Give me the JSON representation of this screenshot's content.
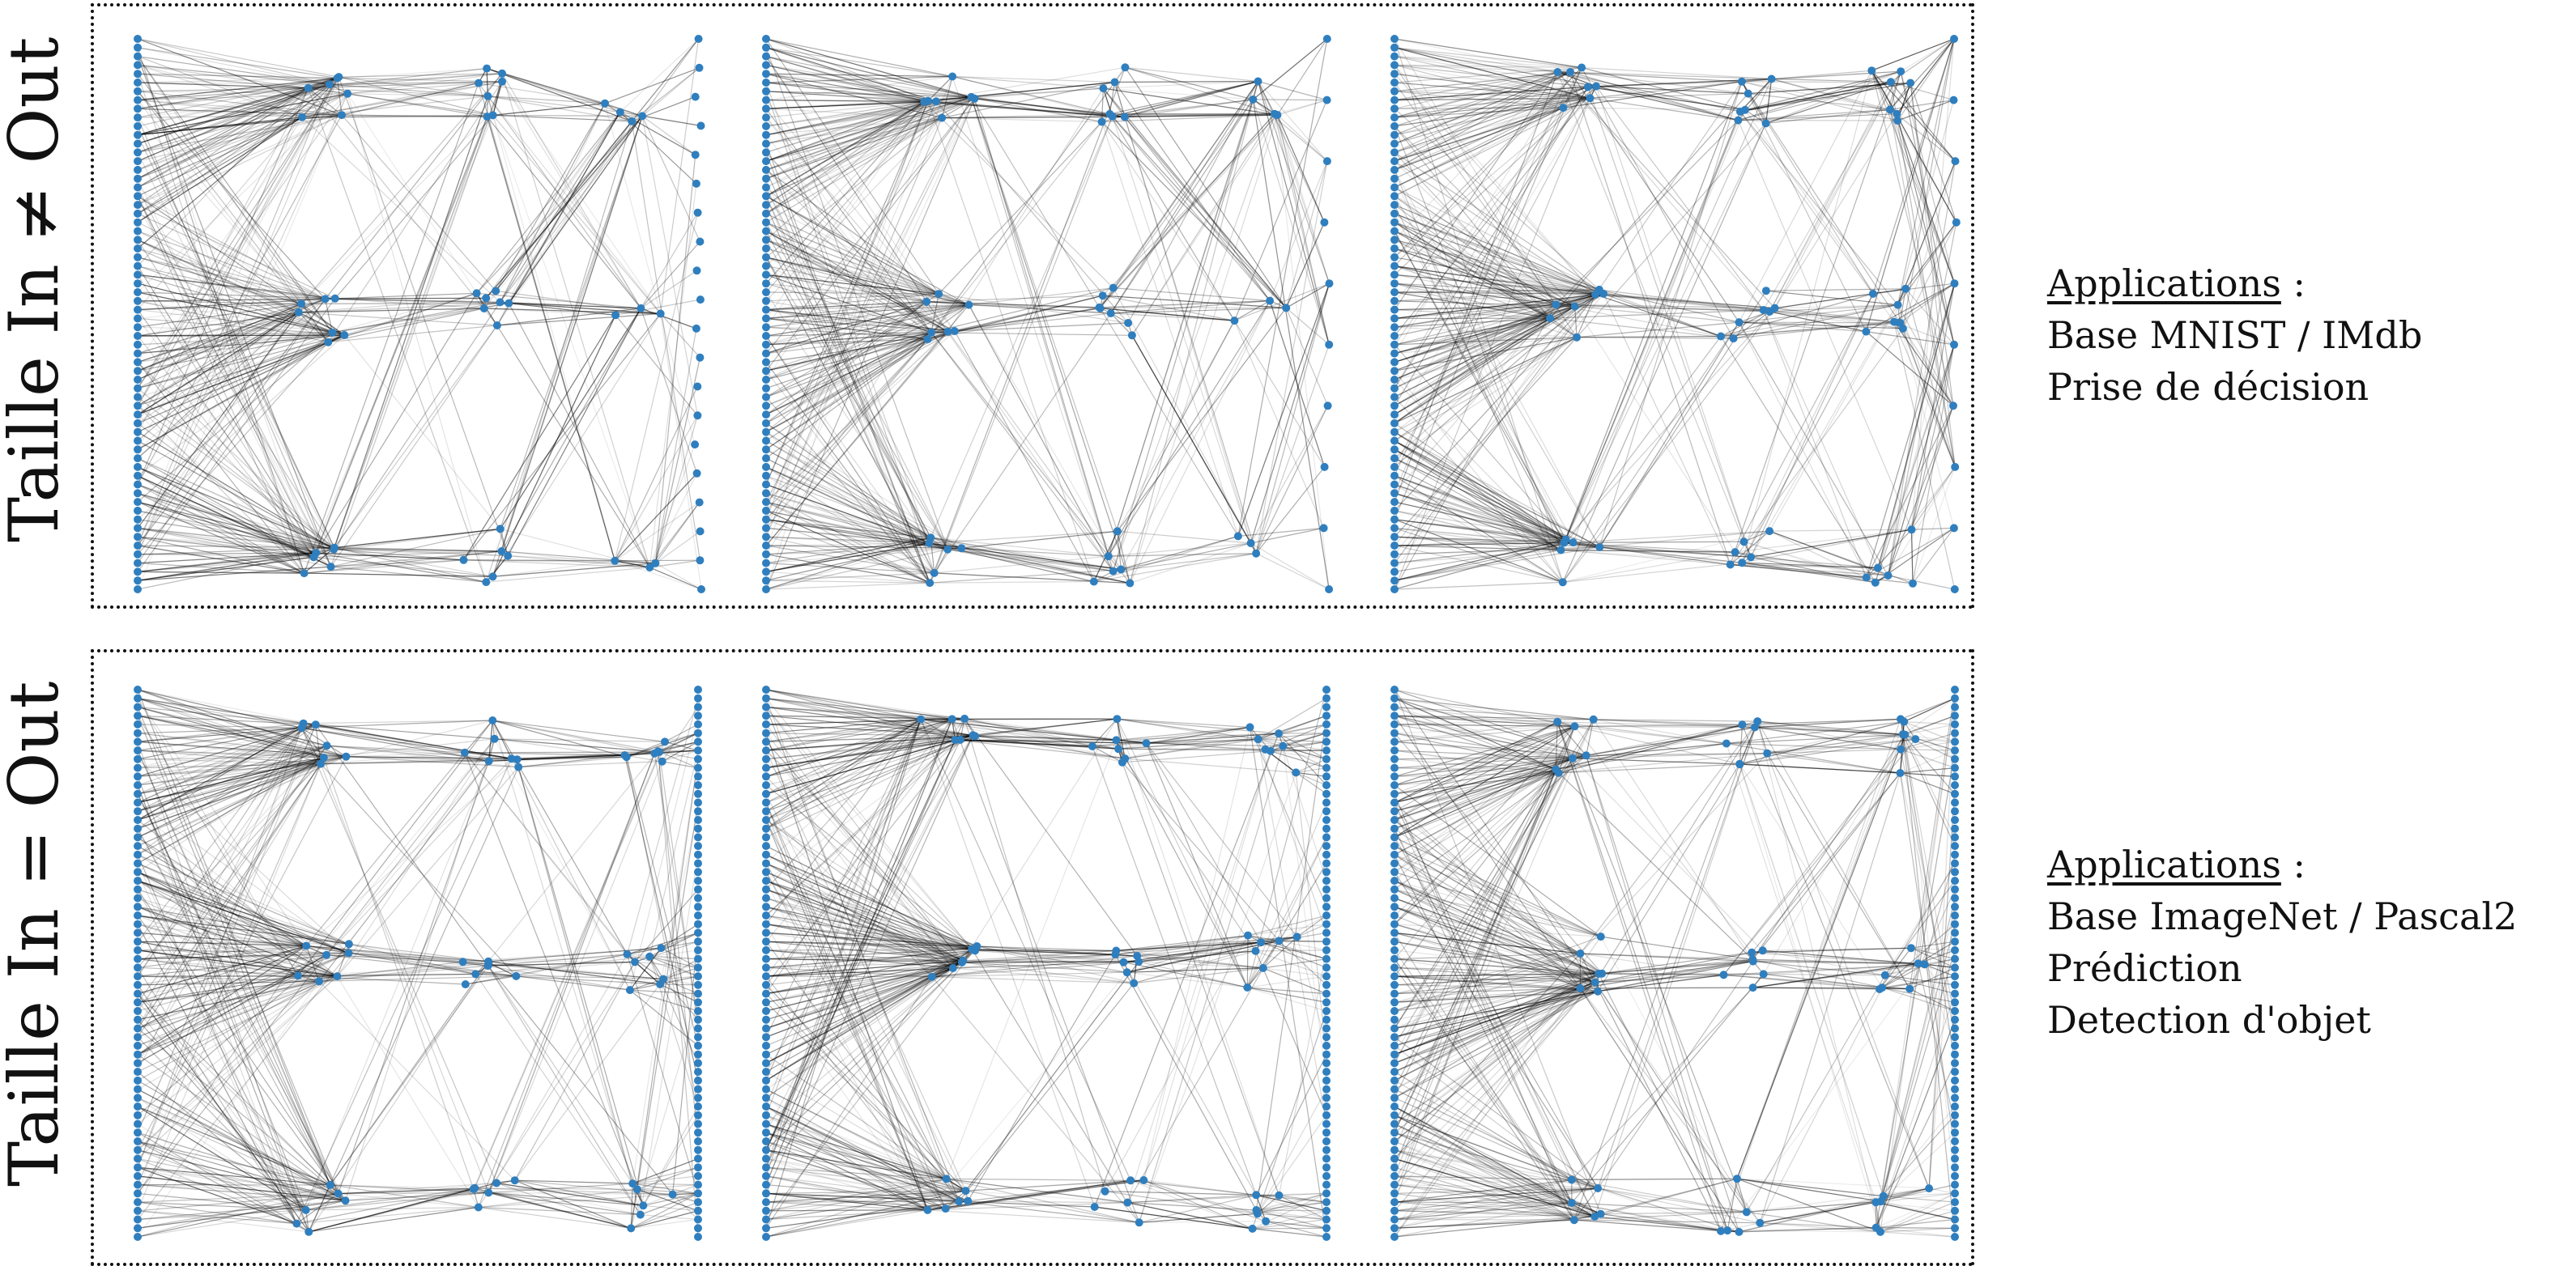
{
  "rows": [
    {
      "label": "Taille In ≠ Out",
      "applications_heading": "Applications",
      "applications_colon": " :",
      "applications": [
        "Base MNIST / IMdb",
        "Prise de décision"
      ],
      "networks": [
        {
          "layers": [
            64,
            20,
            20,
            10,
            20
          ],
          "equal_io": false
        },
        {
          "layers": [
            64,
            20,
            20,
            10,
            10
          ],
          "equal_io": false
        },
        {
          "layers": [
            64,
            20,
            20,
            20,
            10
          ],
          "equal_io": false
        }
      ]
    },
    {
      "label": "Taille In = Out",
      "applications_heading": "Applications",
      "applications_colon": " :",
      "applications": [
        "Base ImageNet / Pascal2",
        "Prédiction",
        "Detection d'objet"
      ],
      "networks": [
        {
          "layers": [
            64,
            20,
            20,
            20,
            64
          ],
          "equal_io": true
        },
        {
          "layers": [
            64,
            20,
            20,
            20,
            64
          ],
          "equal_io": true
        },
        {
          "layers": [
            64,
            20,
            20,
            20,
            64
          ],
          "equal_io": true
        }
      ]
    }
  ],
  "colors": {
    "node": "#2f7fbf",
    "edge": "#000000",
    "border": "#111111"
  }
}
